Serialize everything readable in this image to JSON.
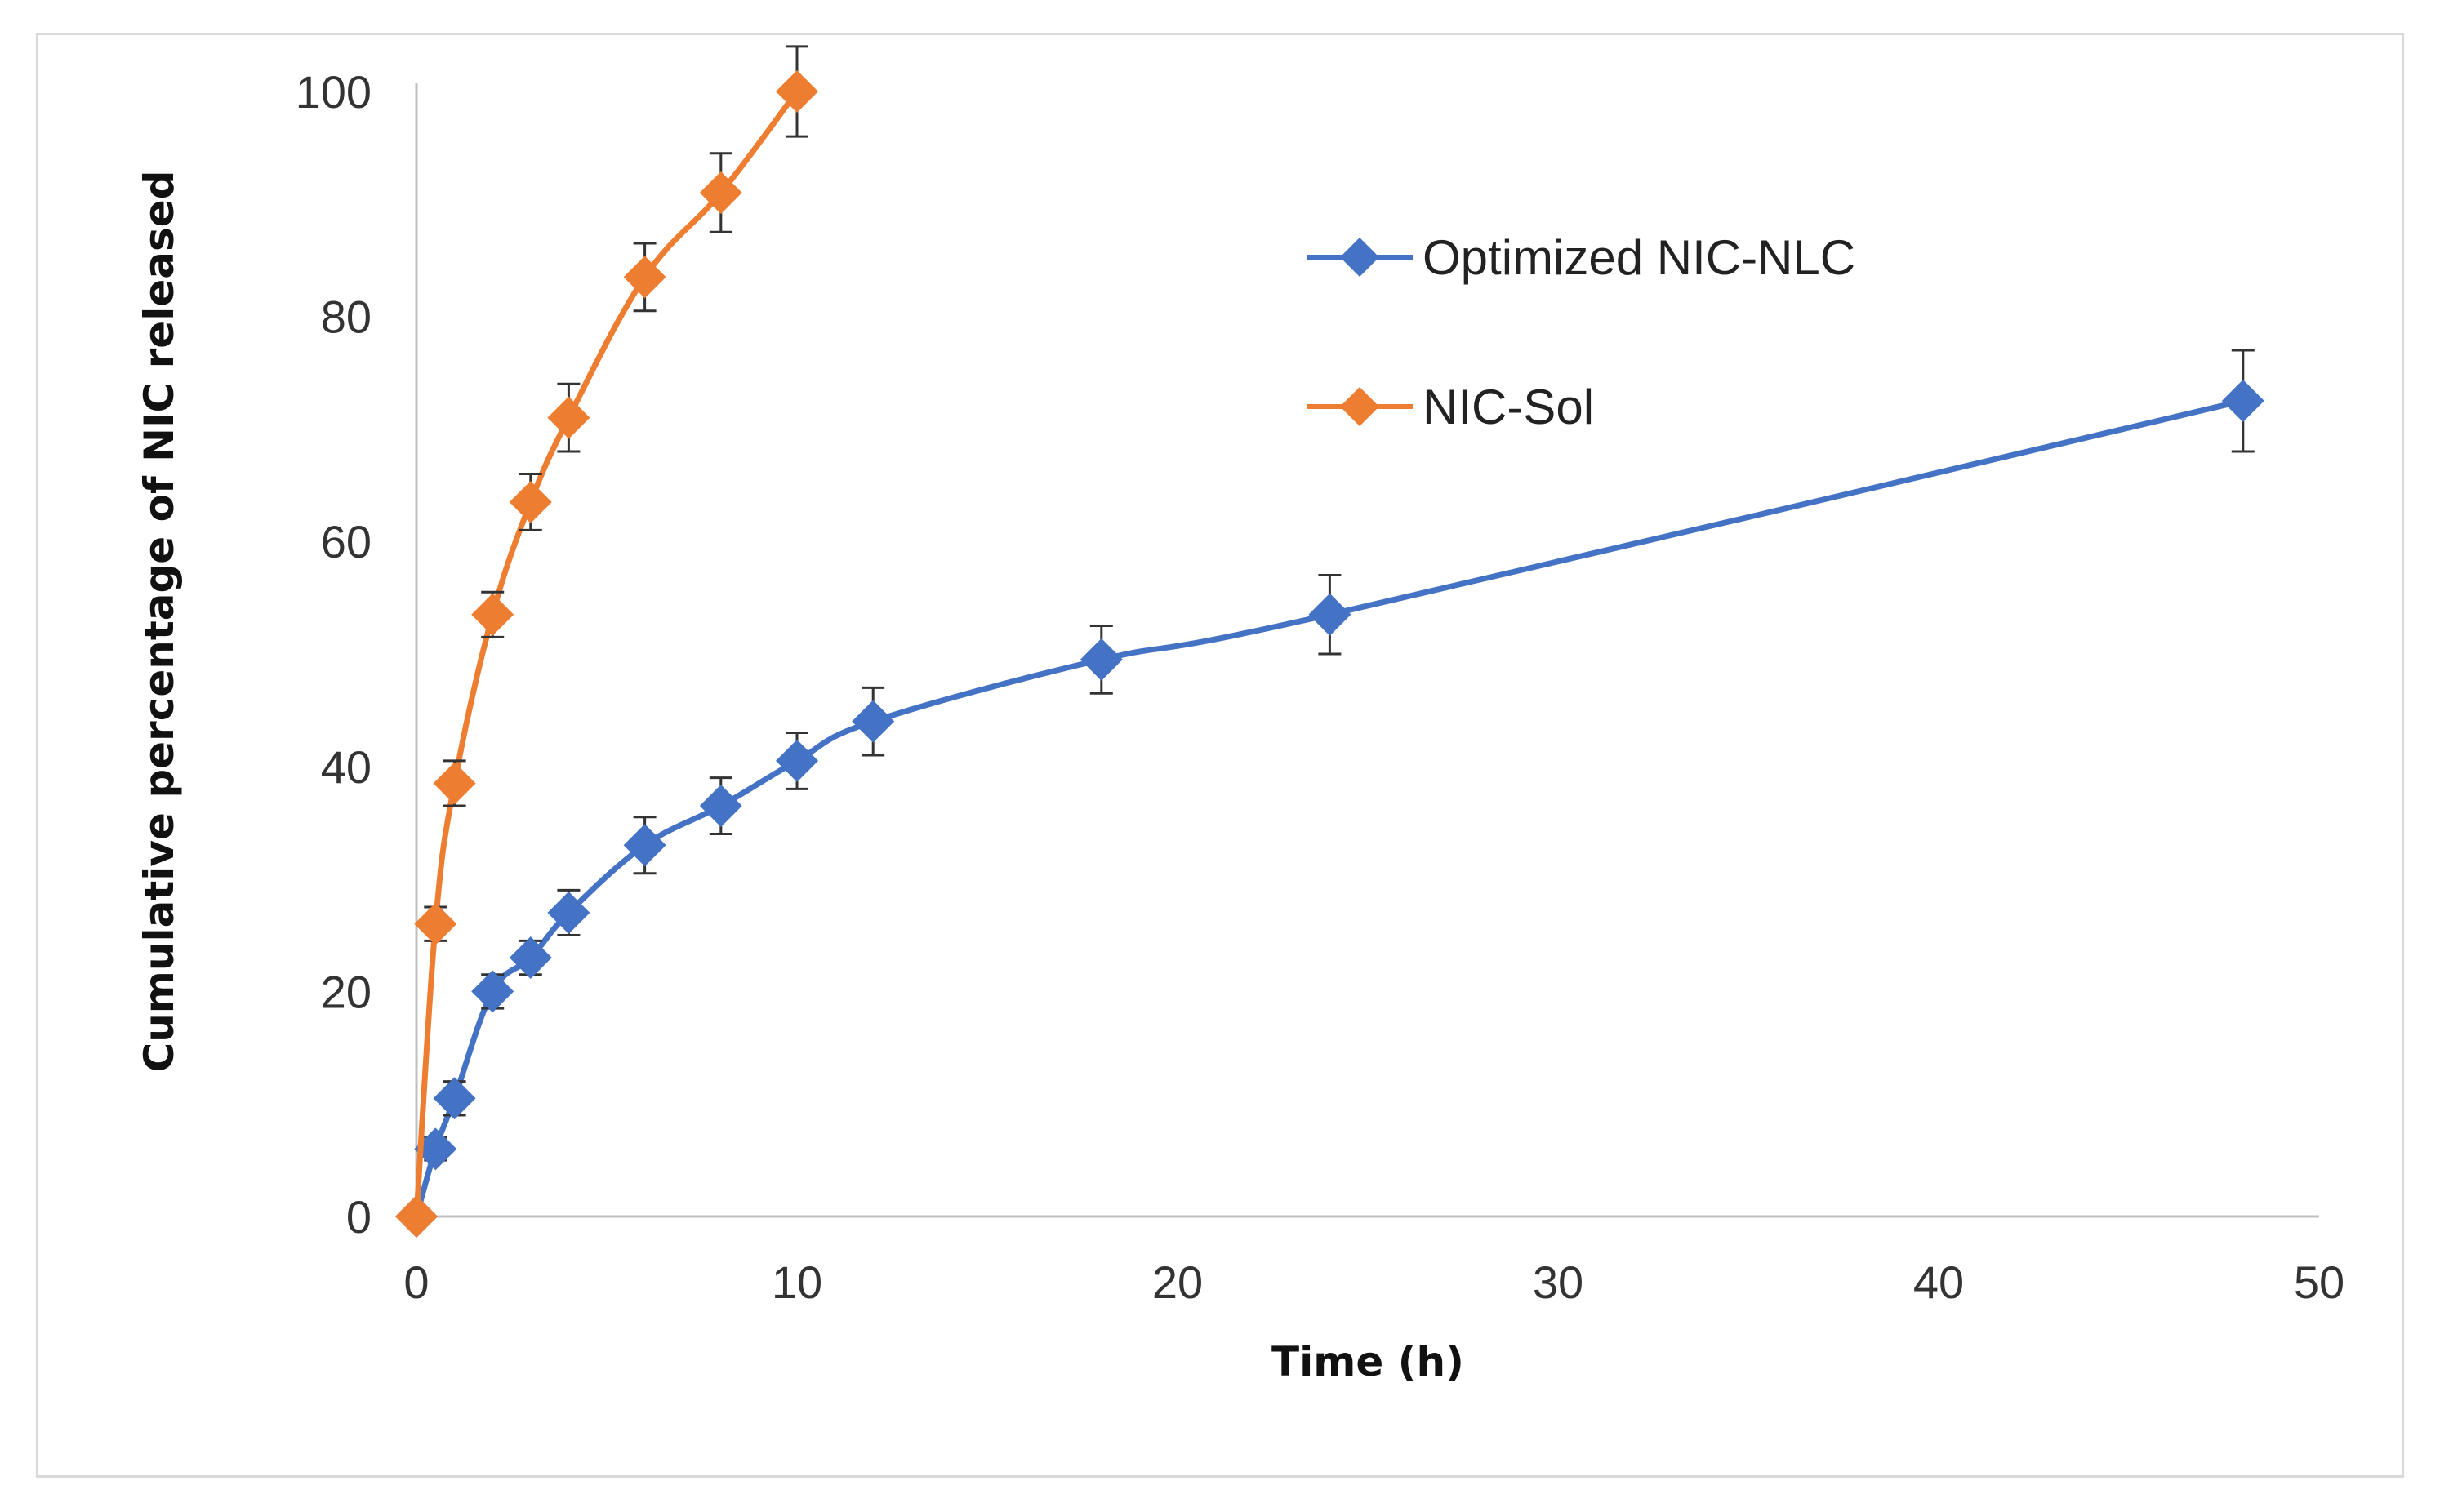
{
  "chart_data": {
    "type": "line",
    "title": "",
    "xlabel": "Time (h)",
    "ylabel": "Cumulative percentage of NIC released",
    "xlim": [
      0,
      50
    ],
    "ylim": [
      0,
      100
    ],
    "x_ticks": [
      "0",
      "10",
      "20",
      "30",
      "40",
      "50"
    ],
    "y_ticks": [
      "0",
      "20",
      "40",
      "60",
      "80",
      "100"
    ],
    "grid": false,
    "legend_position": "top-right",
    "series": [
      {
        "name": "Optimized NIC-NLC",
        "color": "#4472c4",
        "marker": "diamond",
        "x": [
          0,
          0.5,
          1,
          2,
          3,
          4,
          6,
          8,
          10,
          12,
          18,
          24,
          48
        ],
        "y": [
          0,
          6,
          10.5,
          20,
          23,
          27,
          33,
          36.5,
          40.5,
          44,
          49.5,
          53.5,
          72.5
        ],
        "error": [
          0,
          1,
          1.5,
          1.5,
          1.5,
          2,
          2.5,
          2.5,
          2.5,
          3,
          3,
          3.5,
          4.5
        ]
      },
      {
        "name": "NIC-Sol",
        "color": "#ed7d31",
        "marker": "diamond",
        "x": [
          0,
          0.5,
          1,
          2,
          3,
          4,
          6,
          8,
          10
        ],
        "y": [
          0,
          26,
          38.5,
          53.5,
          63.5,
          71,
          83.5,
          91,
          100
        ],
        "error": [
          0,
          1.5,
          2,
          2,
          2.5,
          3,
          3,
          3.5,
          4
        ]
      }
    ]
  }
}
